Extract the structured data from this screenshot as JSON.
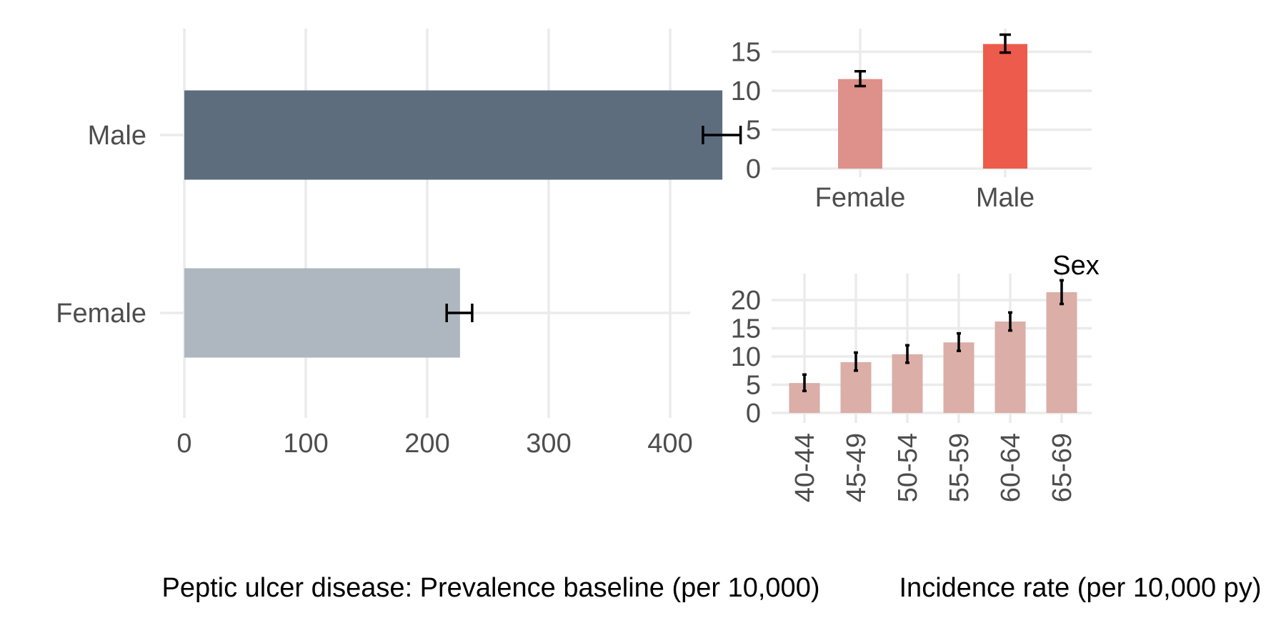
{
  "chart_data": [
    {
      "type": "bar",
      "orientation": "horizontal",
      "xlabel": "Peptic ulcer disease: Prevalence baseline (per 10,000)",
      "ylabel": "",
      "categories": [
        "Female",
        "Male"
      ],
      "values": [
        227,
        443
      ],
      "error_low": [
        216,
        427
      ],
      "error_high": [
        237,
        458
      ],
      "colors": [
        "#aeb6bf",
        "#5d6d7e"
      ],
      "xlim": [
        0,
        480
      ],
      "xticks": [
        0,
        100,
        200,
        300,
        400
      ],
      "grid": true
    },
    {
      "type": "bar",
      "xlabel": "Sex",
      "ylabel": "",
      "categories": [
        "Female",
        "Male"
      ],
      "values": [
        11.5,
        16
      ],
      "error_low": [
        10.6,
        14.9
      ],
      "error_high": [
        12.5,
        17.2
      ],
      "colors": [
        "#dd918a",
        "#ec5b4b"
      ],
      "ylim": [
        0,
        17.5
      ],
      "yticks": [
        0,
        5,
        10,
        15
      ],
      "grid": true
    },
    {
      "type": "bar",
      "xlabel": "Incidence rate (per 10,000 py)",
      "ylabel": "",
      "categories": [
        "40-44",
        "45-49",
        "50-54",
        "55-59",
        "60-64",
        "65-69"
      ],
      "values": [
        5.3,
        9,
        10.4,
        12.5,
        16.2,
        21.4
      ],
      "error_low": [
        3.9,
        7.5,
        8.9,
        11,
        14.6,
        19.3
      ],
      "error_high": [
        6.8,
        10.7,
        12,
        14.1,
        17.8,
        23.5
      ],
      "colors": [
        "#dbaea8",
        "#dbaea8",
        "#dbaea8",
        "#dbaea8",
        "#dbaea8",
        "#dbaea8"
      ],
      "ylim": [
        0,
        24.5
      ],
      "yticks": [
        0,
        5,
        10,
        15,
        20
      ],
      "grid": true
    }
  ]
}
